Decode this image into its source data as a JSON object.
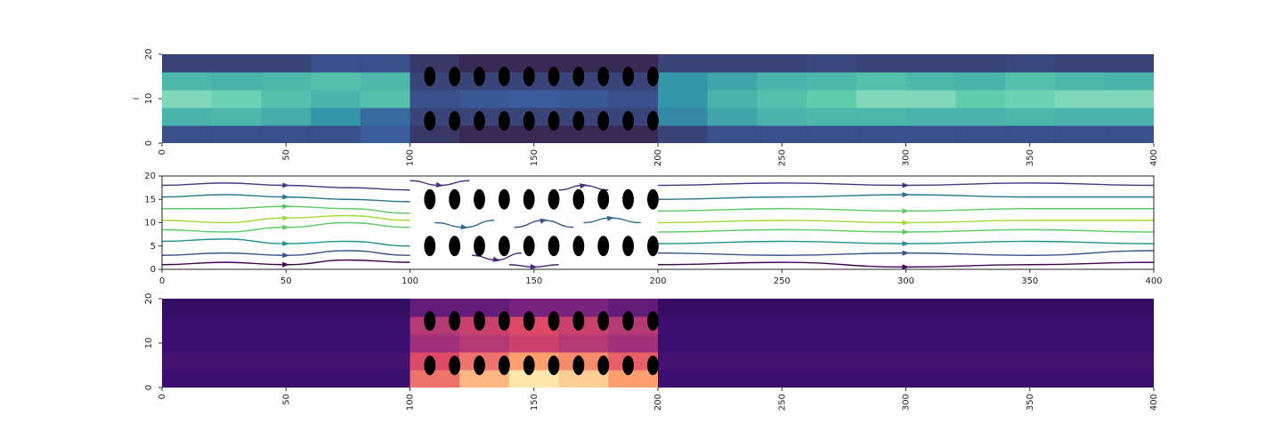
{
  "chart_data": [
    {
      "type": "heatmap",
      "ylabel": "i",
      "xbins": [
        0,
        20,
        40,
        60,
        80,
        100,
        120,
        140,
        160,
        180,
        200,
        220,
        240,
        260,
        280,
        300,
        320,
        340,
        360,
        380,
        400
      ],
      "ybins": [
        0,
        4,
        8,
        12,
        16,
        20
      ],
      "values": [
        [
          0.35,
          0.35,
          0.35,
          0.35,
          0.4,
          0.25,
          0.2,
          0.2,
          0.2,
          0.2,
          0.3,
          0.35,
          0.35,
          0.35,
          0.35,
          0.35,
          0.35,
          0.35,
          0.35,
          0.35
        ],
        [
          0.7,
          0.72,
          0.68,
          0.6,
          0.45,
          0.3,
          0.3,
          0.3,
          0.3,
          0.3,
          0.55,
          0.65,
          0.7,
          0.72,
          0.72,
          0.7,
          0.7,
          0.72,
          0.7,
          0.7
        ],
        [
          0.85,
          0.82,
          0.75,
          0.7,
          0.75,
          0.35,
          0.38,
          0.4,
          0.38,
          0.35,
          0.6,
          0.7,
          0.75,
          0.8,
          0.85,
          0.85,
          0.8,
          0.82,
          0.85,
          0.85
        ],
        [
          0.72,
          0.7,
          0.72,
          0.75,
          0.72,
          0.3,
          0.3,
          0.3,
          0.3,
          0.3,
          0.6,
          0.65,
          0.7,
          0.72,
          0.75,
          0.72,
          0.7,
          0.75,
          0.72,
          0.7
        ],
        [
          0.3,
          0.3,
          0.3,
          0.35,
          0.35,
          0.25,
          0.2,
          0.2,
          0.2,
          0.2,
          0.3,
          0.3,
          0.3,
          0.32,
          0.3,
          0.3,
          0.3,
          0.32,
          0.3,
          0.3
        ]
      ],
      "vlim": [
        0,
        1
      ],
      "colormap": [
        "#0b0405",
        "#382a54",
        "#395d9c",
        "#3497a9",
        "#60ceac",
        "#def5e5"
      ],
      "obstacles_x": [
        108,
        118,
        128,
        138,
        148,
        158,
        168,
        178,
        188,
        198
      ],
      "obstacles_y": [
        5,
        15
      ],
      "obstacle_width": 4.6,
      "obstacle_height": 4.4,
      "obstacle_color": "#000000",
      "xlim": [
        0,
        400
      ],
      "ylim": [
        0,
        20
      ],
      "xticks": [
        0,
        50,
        100,
        150,
        200,
        250,
        300,
        350,
        400
      ],
      "yticks": [
        0,
        10,
        20
      ],
      "xtick_rotation": 90,
      "frame": false
    },
    {
      "type": "streamplot",
      "series": [
        {
          "x": [
            0,
            25,
            50,
            75,
            100
          ],
          "y": [
            1,
            1.5,
            1,
            2,
            1.5
          ],
          "color": "#440154"
        },
        {
          "x": [
            0,
            25,
            50,
            75,
            100
          ],
          "y": [
            3,
            3.5,
            3,
            4,
            3
          ],
          "color": "#3b528b"
        },
        {
          "x": [
            0,
            25,
            50,
            75,
            100
          ],
          "y": [
            6,
            6.5,
            5.5,
            6,
            5
          ],
          "color": "#21918c"
        },
        {
          "x": [
            0,
            25,
            50,
            75,
            100
          ],
          "y": [
            8.5,
            8,
            9,
            10,
            9
          ],
          "color": "#5ec962"
        },
        {
          "x": [
            0,
            25,
            50,
            75,
            100
          ],
          "y": [
            10.5,
            10,
            11,
            11.5,
            10.5
          ],
          "color": "#a0da39"
        },
        {
          "x": [
            0,
            25,
            50,
            75,
            100
          ],
          "y": [
            13,
            13,
            13.5,
            13,
            12
          ],
          "color": "#5ec962"
        },
        {
          "x": [
            0,
            25,
            50,
            75,
            100
          ],
          "y": [
            15.5,
            16,
            15.5,
            15,
            14.5
          ],
          "color": "#2a788e"
        },
        {
          "x": [
            0,
            25,
            50,
            75,
            100
          ],
          "y": [
            18,
            18.5,
            18,
            17.5,
            17
          ],
          "color": "#443983"
        },
        {
          "x": [
            200,
            250,
            300,
            350,
            400
          ],
          "y": [
            1,
            1.5,
            0.5,
            1,
            1.5
          ],
          "color": "#440154"
        },
        {
          "x": [
            200,
            250,
            300,
            350,
            400
          ],
          "y": [
            3.5,
            3,
            3.5,
            3,
            4
          ],
          "color": "#3b528b"
        },
        {
          "x": [
            200,
            250,
            300,
            350,
            400
          ],
          "y": [
            5.5,
            6,
            5.5,
            6,
            5.5
          ],
          "color": "#21918c"
        },
        {
          "x": [
            200,
            250,
            300,
            350,
            400
          ],
          "y": [
            8,
            8.5,
            8,
            8.5,
            8
          ],
          "color": "#5ec962"
        },
        {
          "x": [
            200,
            250,
            300,
            350,
            400
          ],
          "y": [
            10,
            10.5,
            10,
            10.5,
            10.5
          ],
          "color": "#a0da39"
        },
        {
          "x": [
            200,
            250,
            300,
            350,
            400
          ],
          "y": [
            12.5,
            13,
            12.5,
            13,
            13
          ],
          "color": "#5ec962"
        },
        {
          "x": [
            200,
            250,
            300,
            350,
            400
          ],
          "y": [
            15,
            15.5,
            16,
            15.5,
            15.5
          ],
          "color": "#2a788e"
        },
        {
          "x": [
            200,
            250,
            300,
            350,
            400
          ],
          "y": [
            18,
            18.5,
            18,
            18.5,
            18
          ],
          "color": "#443983"
        },
        {
          "x": [
            110,
            122,
            134
          ],
          "y": [
            10,
            9,
            10.5
          ],
          "color": "#31688e"
        },
        {
          "x": [
            142,
            154,
            166
          ],
          "y": [
            9,
            10.5,
            9
          ],
          "color": "#3b528b"
        },
        {
          "x": [
            170,
            181,
            193
          ],
          "y": [
            10,
            11,
            10
          ],
          "color": "#31688e"
        },
        {
          "x": [
            100,
            112,
            124
          ],
          "y": [
            19,
            18,
            19
          ],
          "color": "#472d7b"
        },
        {
          "x": [
            140,
            150,
            160
          ],
          "y": [
            1,
            0.5,
            1
          ],
          "color": "#482475"
        },
        {
          "x": [
            125,
            135,
            145
          ],
          "y": [
            3,
            2,
            3.5
          ],
          "color": "#482475"
        },
        {
          "x": [
            160,
            170,
            180
          ],
          "y": [
            17,
            18,
            17
          ],
          "color": "#472d7b"
        }
      ],
      "obstacles_x": [
        108,
        118,
        128,
        138,
        148,
        158,
        168,
        178,
        188,
        198
      ],
      "obstacles_y": [
        5,
        15
      ],
      "obstacle_width": 4.6,
      "obstacle_height": 4.4,
      "obstacle_color": "#000000",
      "xlim": [
        0,
        400
      ],
      "ylim": [
        0,
        20
      ],
      "xticks": [
        0,
        50,
        100,
        150,
        200,
        250,
        300,
        350,
        400
      ],
      "yticks": [
        0,
        5,
        10,
        15,
        20
      ],
      "xtick_rotation": 0,
      "frame": true
    },
    {
      "type": "heatmap",
      "xbins": [
        0,
        20,
        40,
        60,
        80,
        100,
        120,
        140,
        160,
        180,
        200,
        220,
        240,
        260,
        280,
        300,
        320,
        340,
        360,
        380,
        400
      ],
      "ybins": [
        0,
        4,
        8,
        12,
        16,
        20
      ],
      "values": [
        [
          0.2,
          0.2,
          0.2,
          0.2,
          0.2,
          0.7,
          0.85,
          0.95,
          0.9,
          0.8,
          0.2,
          0.2,
          0.2,
          0.2,
          0.2,
          0.2,
          0.2,
          0.2,
          0.2,
          0.2
        ],
        [
          0.22,
          0.22,
          0.22,
          0.22,
          0.22,
          0.6,
          0.7,
          0.8,
          0.75,
          0.65,
          0.22,
          0.22,
          0.22,
          0.22,
          0.22,
          0.22,
          0.22,
          0.22,
          0.22,
          0.22
        ],
        [
          0.2,
          0.2,
          0.2,
          0.2,
          0.2,
          0.45,
          0.5,
          0.55,
          0.5,
          0.45,
          0.2,
          0.2,
          0.2,
          0.2,
          0.2,
          0.2,
          0.2,
          0.2,
          0.2,
          0.2
        ],
        [
          0.2,
          0.2,
          0.2,
          0.2,
          0.2,
          0.5,
          0.55,
          0.6,
          0.55,
          0.5,
          0.2,
          0.2,
          0.2,
          0.2,
          0.2,
          0.2,
          0.2,
          0.2,
          0.2,
          0.2
        ],
        [
          0.18,
          0.18,
          0.18,
          0.18,
          0.18,
          0.3,
          0.3,
          0.35,
          0.35,
          0.3,
          0.18,
          0.18,
          0.18,
          0.18,
          0.18,
          0.18,
          0.18,
          0.18,
          0.18,
          0.18
        ]
      ],
      "vlim": [
        0,
        1
      ],
      "colormap": [
        "#000004",
        "#3b0f70",
        "#8c2981",
        "#de4968",
        "#fe9f6d",
        "#fcfdbf"
      ],
      "obstacles_x": [
        108,
        118,
        128,
        138,
        148,
        158,
        168,
        178,
        188,
        198
      ],
      "obstacles_y": [
        5,
        15
      ],
      "obstacle_width": 4.6,
      "obstacle_height": 4.4,
      "obstacle_color": "#000000",
      "xlim": [
        0,
        400
      ],
      "ylim": [
        0,
        20
      ],
      "xticks": [
        0,
        50,
        100,
        150,
        200,
        250,
        300,
        350,
        400
      ],
      "yticks": [
        0,
        10,
        20
      ],
      "xtick_rotation": 90,
      "frame": false
    }
  ]
}
